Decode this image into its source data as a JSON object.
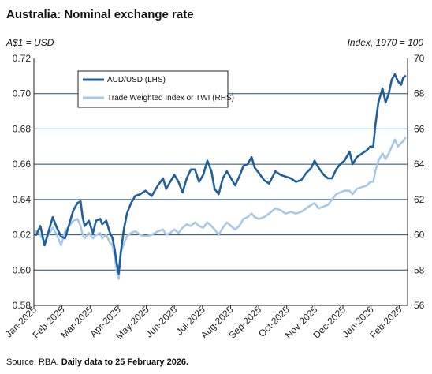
{
  "chart_data": {
    "type": "line",
    "title": "Australia: Nominal exchange rate",
    "left_axis_label": "A$1 = USD",
    "right_axis_label": "Index, 1970 = 100",
    "y_left": {
      "min": 0.58,
      "max": 0.72,
      "ticks": [
        "0.58",
        "0.60",
        "0.62",
        "0.64",
        "0.66",
        "0.68",
        "0.70",
        "0.72"
      ]
    },
    "y_right": {
      "min": 56,
      "max": 70,
      "ticks": [
        "56",
        "58",
        "60",
        "62",
        "64",
        "66",
        "68",
        "70"
      ]
    },
    "x_ticks": [
      "Jan-2025",
      "Feb-2025",
      "Mar-2025",
      "Apr-2025",
      "May-2025",
      "Jun-2025",
      "Jul-2025",
      "Aug-2025",
      "Sep-2025",
      "Oct-2025",
      "Nov-2025",
      "Dec-2025",
      "Jan-2026",
      "Feb-2026"
    ],
    "gridlines": true,
    "legend_position": "top-left",
    "source_prefix": "Source: RBA. ",
    "source_bold": "Daily data to 25 February 2026.",
    "series": [
      {
        "name": "AUD/USD (LHS)",
        "axis": "left",
        "color": "#1f5f9e",
        "points": [
          [
            0,
            0.62
          ],
          [
            4,
            0.625
          ],
          [
            8,
            0.614
          ],
          [
            12,
            0.622
          ],
          [
            16,
            0.63
          ],
          [
            20,
            0.624
          ],
          [
            24,
            0.619
          ],
          [
            28,
            0.618
          ],
          [
            32,
            0.626
          ],
          [
            36,
            0.634
          ],
          [
            40,
            0.638
          ],
          [
            43,
            0.639
          ],
          [
            45,
            0.63
          ],
          [
            47,
            0.625
          ],
          [
            51,
            0.628
          ],
          [
            55,
            0.621
          ],
          [
            58,
            0.628
          ],
          [
            62,
            0.629
          ],
          [
            64,
            0.626
          ],
          [
            68,
            0.628
          ],
          [
            71,
            0.622
          ],
          [
            74,
            0.618
          ],
          [
            76,
            0.612
          ],
          [
            78,
            0.604
          ],
          [
            80,
            0.598
          ],
          [
            82,
            0.61
          ],
          [
            85,
            0.623
          ],
          [
            88,
            0.632
          ],
          [
            92,
            0.638
          ],
          [
            96,
            0.642
          ],
          [
            101,
            0.643
          ],
          [
            106,
            0.645
          ],
          [
            112,
            0.642
          ],
          [
            118,
            0.648
          ],
          [
            123,
            0.652
          ],
          [
            126,
            0.646
          ],
          [
            130,
            0.65
          ],
          [
            134,
            0.654
          ],
          [
            138,
            0.65
          ],
          [
            142,
            0.644
          ],
          [
            146,
            0.652
          ],
          [
            150,
            0.657
          ],
          [
            154,
            0.657
          ],
          [
            158,
            0.65
          ],
          [
            162,
            0.654
          ],
          [
            166,
            0.662
          ],
          [
            170,
            0.656
          ],
          [
            173,
            0.646
          ],
          [
            177,
            0.643
          ],
          [
            181,
            0.652
          ],
          [
            185,
            0.656
          ],
          [
            189,
            0.652
          ],
          [
            193,
            0.648
          ],
          [
            197,
            0.653
          ],
          [
            201,
            0.659
          ],
          [
            205,
            0.66
          ],
          [
            209,
            0.664
          ],
          [
            212,
            0.658
          ],
          [
            216,
            0.655
          ],
          [
            221,
            0.651
          ],
          [
            226,
            0.649
          ],
          [
            232,
            0.656
          ],
          [
            237,
            0.654
          ],
          [
            242,
            0.653
          ],
          [
            247,
            0.652
          ],
          [
            252,
            0.65
          ],
          [
            257,
            0.651
          ],
          [
            262,
            0.655
          ],
          [
            267,
            0.658
          ],
          [
            270,
            0.662
          ],
          [
            274,
            0.658
          ],
          [
            279,
            0.654
          ],
          [
            283,
            0.652
          ],
          [
            287,
            0.652
          ],
          [
            291,
            0.657
          ],
          [
            295,
            0.66
          ],
          [
            299,
            0.662
          ],
          [
            304,
            0.667
          ],
          [
            307,
            0.66
          ],
          [
            311,
            0.664
          ],
          [
            316,
            0.666
          ],
          [
            321,
            0.668
          ],
          [
            324,
            0.67
          ],
          [
            327,
            0.67
          ],
          [
            329,
            0.682
          ],
          [
            332,
            0.695
          ],
          [
            336,
            0.703
          ],
          [
            339,
            0.695
          ],
          [
            342,
            0.7
          ],
          [
            345,
            0.708
          ],
          [
            348,
            0.711
          ],
          [
            351,
            0.707
          ],
          [
            354,
            0.705
          ],
          [
            356,
            0.709
          ],
          [
            358,
            0.71
          ]
        ]
      },
      {
        "name": "Trade Weighted Index or TWI (RHS)",
        "axis": "right",
        "color": "#a8c8e8",
        "points": [
          [
            0,
            60.2
          ],
          [
            4,
            60.0
          ],
          [
            8,
            59.6
          ],
          [
            12,
            60.0
          ],
          [
            16,
            60.4
          ],
          [
            20,
            60.0
          ],
          [
            24,
            59.4
          ],
          [
            28,
            60.2
          ],
          [
            32,
            60.5
          ],
          [
            36,
            60.8
          ],
          [
            40,
            60.9
          ],
          [
            43,
            60.5
          ],
          [
            45,
            60.0
          ],
          [
            47,
            59.8
          ],
          [
            51,
            60.1
          ],
          [
            55,
            59.8
          ],
          [
            58,
            60.0
          ],
          [
            62,
            60.1
          ],
          [
            64,
            59.8
          ],
          [
            68,
            60.0
          ],
          [
            71,
            59.6
          ],
          [
            74,
            59.4
          ],
          [
            76,
            58.8
          ],
          [
            78,
            58.0
          ],
          [
            80,
            57.5
          ],
          [
            82,
            59.0
          ],
          [
            85,
            59.5
          ],
          [
            88,
            59.9
          ],
          [
            92,
            60.1
          ],
          [
            96,
            60.2
          ],
          [
            101,
            60.0
          ],
          [
            106,
            59.9
          ],
          [
            112,
            60.0
          ],
          [
            118,
            60.2
          ],
          [
            123,
            60.3
          ],
          [
            126,
            60.0
          ],
          [
            130,
            60.1
          ],
          [
            134,
            60.3
          ],
          [
            138,
            60.1
          ],
          [
            142,
            60.4
          ],
          [
            146,
            60.6
          ],
          [
            150,
            60.5
          ],
          [
            154,
            60.7
          ],
          [
            158,
            60.5
          ],
          [
            162,
            60.4
          ],
          [
            166,
            60.7
          ],
          [
            170,
            60.5
          ],
          [
            173,
            60.3
          ],
          [
            177,
            60.0
          ],
          [
            181,
            60.4
          ],
          [
            185,
            60.7
          ],
          [
            189,
            60.5
          ],
          [
            193,
            60.3
          ],
          [
            197,
            60.5
          ],
          [
            201,
            60.9
          ],
          [
            205,
            61.0
          ],
          [
            209,
            61.2
          ],
          [
            212,
            61.0
          ],
          [
            216,
            60.9
          ],
          [
            221,
            61.0
          ],
          [
            226,
            61.2
          ],
          [
            232,
            61.5
          ],
          [
            237,
            61.4
          ],
          [
            242,
            61.2
          ],
          [
            247,
            61.3
          ],
          [
            252,
            61.2
          ],
          [
            257,
            61.3
          ],
          [
            262,
            61.5
          ],
          [
            267,
            61.7
          ],
          [
            270,
            61.8
          ],
          [
            274,
            61.5
          ],
          [
            279,
            61.6
          ],
          [
            283,
            61.7
          ],
          [
            287,
            62.0
          ],
          [
            291,
            62.3
          ],
          [
            295,
            62.4
          ],
          [
            299,
            62.5
          ],
          [
            304,
            62.5
          ],
          [
            307,
            62.3
          ],
          [
            311,
            62.6
          ],
          [
            316,
            62.7
          ],
          [
            321,
            62.8
          ],
          [
            324,
            63.0
          ],
          [
            327,
            63.0
          ],
          [
            329,
            63.6
          ],
          [
            332,
            64.2
          ],
          [
            336,
            64.6
          ],
          [
            339,
            64.3
          ],
          [
            342,
            64.6
          ],
          [
            345,
            65.0
          ],
          [
            348,
            65.4
          ],
          [
            351,
            65.0
          ],
          [
            354,
            65.2
          ],
          [
            356,
            65.3
          ],
          [
            358,
            65.5
          ]
        ]
      }
    ]
  }
}
